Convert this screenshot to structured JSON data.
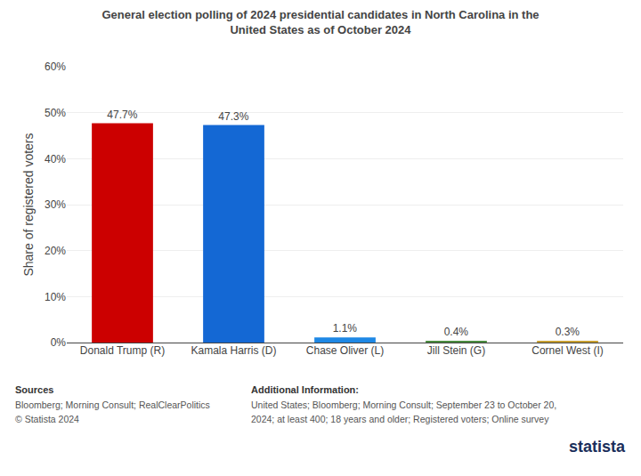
{
  "chart_data": {
    "type": "bar",
    "title": "General election polling of 2024 presidential candidates in North Carolina in the\nUnited States as of October 2024",
    "categories": [
      "Donald Trump (R)",
      "Kamala Harris (D)",
      "Chase Oliver (L)",
      "Jill Stein (G)",
      "Cornel West (I)"
    ],
    "values": [
      47.7,
      47.3,
      1.1,
      0.4,
      0.3
    ],
    "value_labels": [
      "47.7%",
      "47.3%",
      "1.1%",
      "0.4%",
      "0.3%"
    ],
    "data_labels": true,
    "colors": [
      "#cc0000",
      "#1468d4",
      "#1e88e5",
      "#4a8c3f",
      "#c8a030"
    ],
    "ylabel": "Share of registered voters",
    "ylim": [
      0,
      60
    ],
    "yticks": [
      {
        "value": 0,
        "label": "0%"
      },
      {
        "value": 10,
        "label": "10%"
      },
      {
        "value": 20,
        "label": "20%"
      },
      {
        "value": 30,
        "label": "30%"
      },
      {
        "value": 40,
        "label": "40%"
      },
      {
        "value": 50,
        "label": "50%"
      },
      {
        "value": 60,
        "label": "60%"
      }
    ],
    "grid": true,
    "annotations": [
      "Sources",
      "Bloomberg; Morning Consult; RealClearPolitics",
      "© Statista 2024",
      "Additional Information:",
      "United States; Bloomberg; Morning Consult; September 23 to October 20,",
      "2024; at least 400; 18 years and older; Registered voters; Online survey",
      "statista"
    ]
  }
}
